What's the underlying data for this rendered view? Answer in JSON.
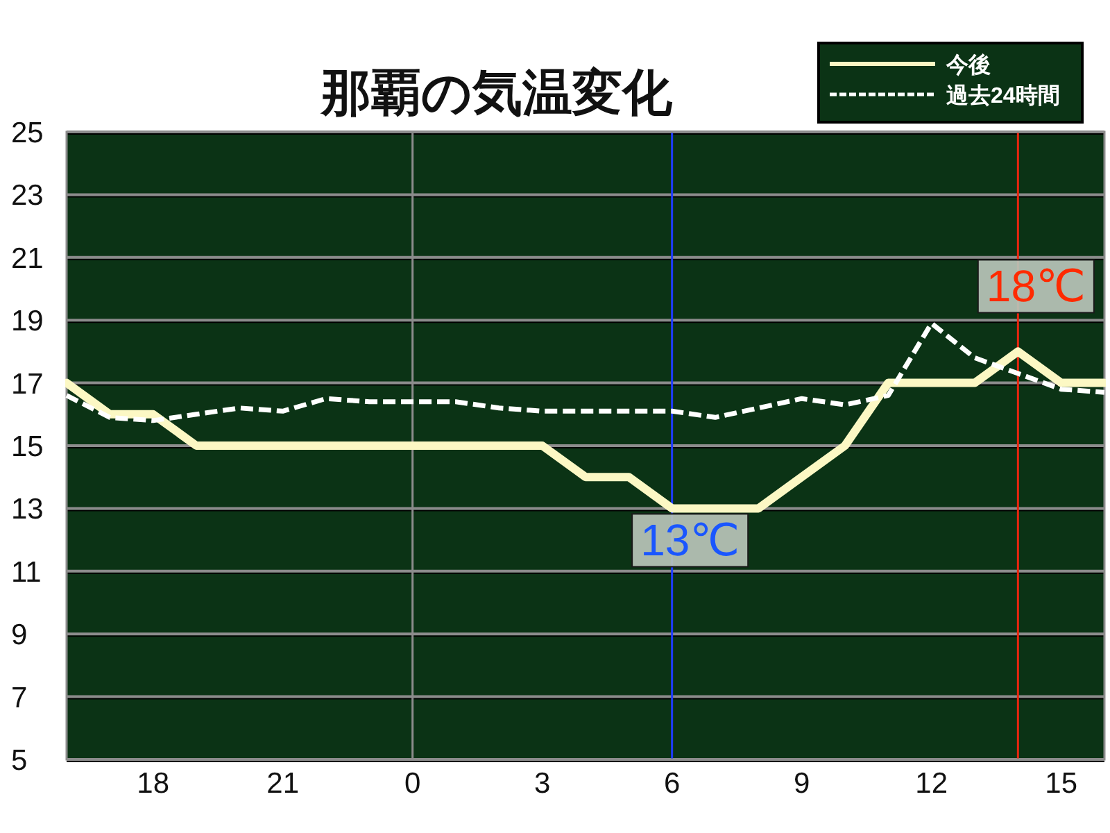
{
  "chart_data": {
    "type": "line",
    "title": "那覇の気温変化",
    "categories": [
      null,
      null,
      "18",
      null,
      null,
      "21",
      null,
      null,
      "0",
      null,
      null,
      "3",
      null,
      null,
      "6",
      null,
      null,
      "9",
      null,
      null,
      "12",
      null,
      null,
      "15",
      null
    ],
    "ylim": [
      5,
      25
    ],
    "yticks": [
      5,
      7,
      9,
      11,
      13,
      15,
      17,
      19,
      21,
      23,
      25
    ],
    "series": [
      {
        "name": "今後",
        "color": "#fcf8c4",
        "line_style": "solid",
        "values": [
          17,
          16,
          16,
          15,
          15,
          15,
          15,
          15,
          15,
          15,
          15,
          15,
          14,
          14,
          13,
          13,
          13,
          14,
          15,
          17,
          17,
          17,
          18,
          17,
          17
        ]
      },
      {
        "name": "過去24時間",
        "color": "#ffffff",
        "line_style": "dashed",
        "values": [
          16.6,
          15.9,
          15.8,
          16.0,
          16.2,
          16.1,
          16.5,
          16.4,
          16.4,
          16.4,
          16.2,
          16.1,
          16.1,
          16.1,
          16.1,
          15.9,
          16.2,
          16.5,
          16.3,
          16.6,
          18.9,
          17.8,
          17.3,
          16.8,
          16.7
        ]
      }
    ],
    "ref_lines": [
      {
        "axis": "x",
        "value": "0",
        "color": "#8c8c8c"
      }
    ],
    "annotations": [
      {
        "text": "13℃",
        "x": "6",
        "y": 13
      },
      {
        "text": "18℃",
        "y": 18
      }
    ],
    "grid": "y",
    "legend": "top right"
  }
}
